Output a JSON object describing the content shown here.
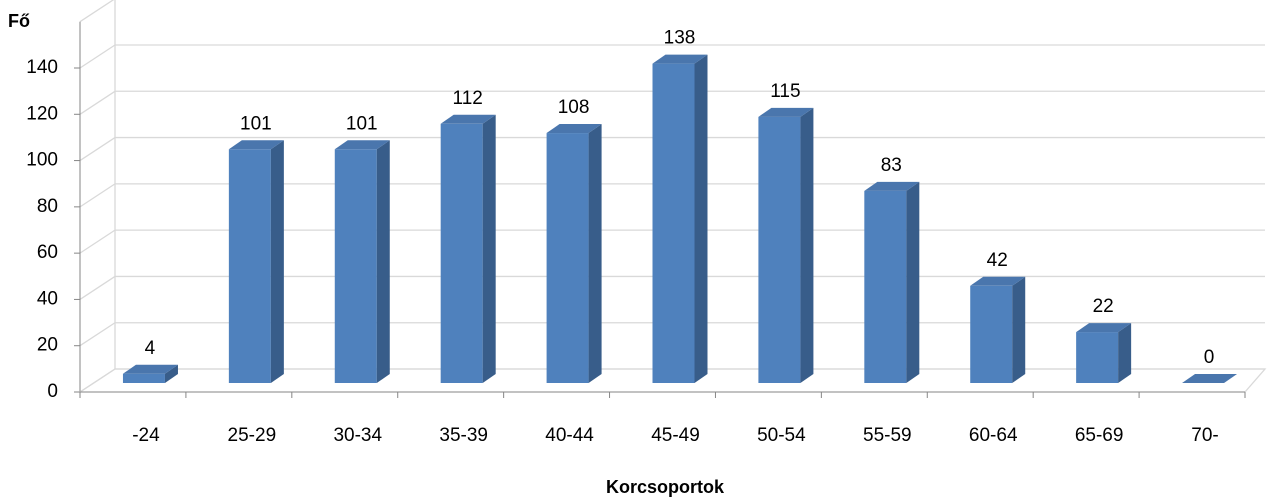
{
  "chart_data": {
    "type": "bar3d",
    "ylabel": "Fő",
    "xlabel": "Korcsoportok",
    "categories": [
      "-24",
      "25-29",
      "30-34",
      "35-39",
      "40-44",
      "45-49",
      "50-54",
      "55-59",
      "60-64",
      "65-69",
      "70-"
    ],
    "values": [
      4,
      101,
      101,
      112,
      108,
      138,
      115,
      83,
      42,
      22,
      0
    ],
    "color": "#4f81bd",
    "ylim": [
      0,
      160
    ],
    "yticks": [
      0,
      20,
      40,
      60,
      80,
      100,
      120,
      140
    ],
    "grid": true
  }
}
